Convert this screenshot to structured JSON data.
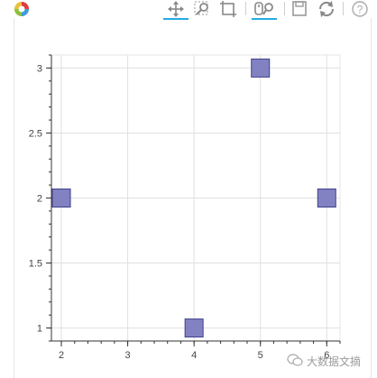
{
  "toolbar": {
    "tools": [
      {
        "name": "bokeh-logo-icon"
      },
      {
        "name": "pan-tool-icon",
        "active": true
      },
      {
        "name": "box-zoom-tool-icon",
        "active": false
      },
      {
        "name": "box-select-tool-icon",
        "active": false
      },
      {
        "name": "wheel-zoom-tool-icon",
        "active": true
      },
      {
        "name": "save-tool-icon",
        "active": false
      },
      {
        "name": "reset-tool-icon",
        "active": false
      },
      {
        "name": "help-tool-icon",
        "active": false
      }
    ],
    "active_color": "#26aae1"
  },
  "chart_data": {
    "type": "scatter",
    "marker": "square",
    "marker_color": "#7b7bc0",
    "marker_edge_color": "#3f3f8c",
    "x": [
      2,
      4,
      5,
      6
    ],
    "y": [
      2,
      1,
      3,
      2
    ],
    "xlim": [
      1.85,
      6.2
    ],
    "ylim": [
      0.9,
      3.1
    ],
    "x_ticks": [
      "2",
      "3",
      "4",
      "5",
      "6"
    ],
    "y_ticks": [
      "1",
      "1.5",
      "2",
      "2.5",
      "3"
    ],
    "grid": true
  },
  "watermark": {
    "text": "大数据文摘"
  }
}
